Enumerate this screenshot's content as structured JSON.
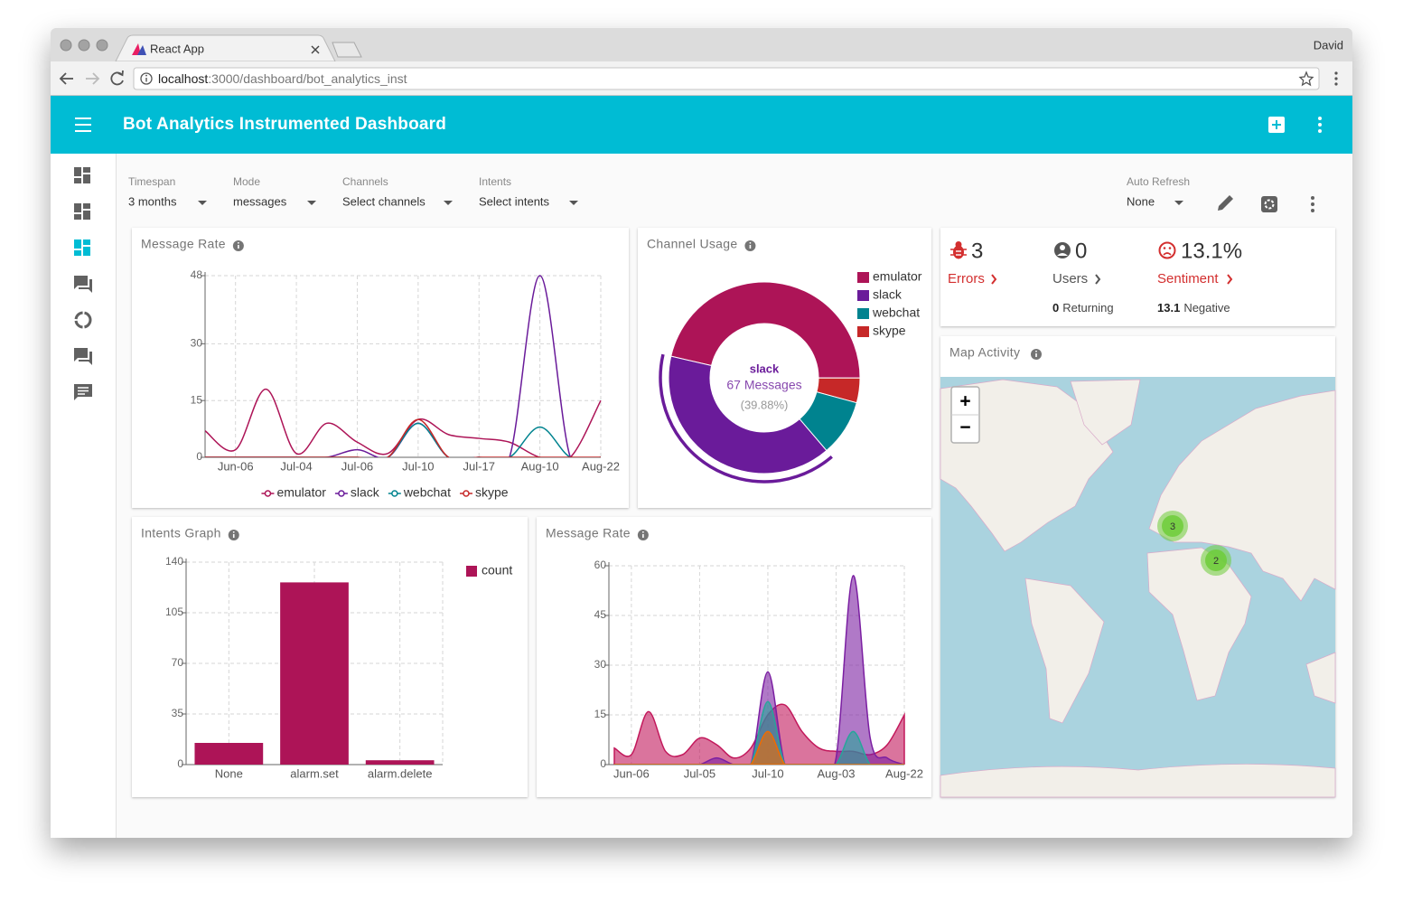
{
  "browser": {
    "tab_title": "React App",
    "user": "David",
    "url": {
      "host": "localhost",
      "path": ":3000/dashboard/bot_analytics_inst"
    }
  },
  "app_bar": {
    "title": "Bot Analytics Instrumented Dashboard"
  },
  "filters": [
    {
      "label": "Timespan",
      "value": "3 months"
    },
    {
      "label": "Mode",
      "value": "messages"
    },
    {
      "label": "Channels",
      "value": "Select channels"
    },
    {
      "label": "Intents",
      "value": "Select intents"
    },
    {
      "label": "Auto Refresh",
      "value": "None"
    }
  ],
  "stats": [
    {
      "value": 3,
      "label": "Errors"
    },
    {
      "value": 0,
      "label": "Users",
      "sub_value": 0,
      "sub_label": "Returning"
    },
    {
      "value_label": "13.1%",
      "label": "Sentiment",
      "sub_value": 13.1,
      "sub_label": "Negative"
    }
  ],
  "map": {
    "title": "Map Activity",
    "zoom_in": "+",
    "zoom_out": "−",
    "clusters": [
      {
        "count": 3
      },
      {
        "count": 2
      }
    ]
  },
  "chart_data": [
    {
      "type": "line",
      "title": "Message Rate",
      "categories": [
        null,
        "Jun-06",
        null,
        "Jul-04",
        null,
        "Jul-06",
        null,
        "Jul-10",
        null,
        "Jul-17",
        null,
        "Aug-10",
        null,
        "Aug-22"
      ],
      "series": [
        {
          "name": "emulator",
          "color": "#ad1457",
          "values": [
            7,
            2,
            18,
            1,
            9,
            4,
            1,
            10,
            6,
            5,
            4,
            0,
            0,
            15
          ]
        },
        {
          "name": "slack",
          "color": "#6a1b9a",
          "values": [
            0,
            0,
            0,
            0,
            0,
            2,
            0,
            9,
            0,
            0,
            0,
            48,
            0,
            0
          ]
        },
        {
          "name": "webchat",
          "color": "#00838f",
          "values": [
            0,
            0,
            0,
            0,
            0,
            0,
            0,
            9,
            0,
            0,
            0,
            8,
            0,
            0
          ]
        },
        {
          "name": "skype",
          "color": "#c62828",
          "values": [
            0,
            0,
            0,
            0,
            0,
            0,
            0,
            10,
            0,
            0,
            0,
            0,
            0,
            0
          ]
        }
      ],
      "ylim": [
        0,
        48
      ],
      "yticks": [
        0,
        15,
        30,
        48
      ],
      "grid": true,
      "legend": "bottom"
    },
    {
      "type": "pie",
      "title": "Channel Usage",
      "categories": [
        "emulator",
        "slack",
        "webchat",
        "skype"
      ],
      "values": [
        78,
        67,
        16,
        7
      ],
      "colors": [
        "#ad1457",
        "#6a1b9a",
        "#00838f",
        "#c62828"
      ],
      "highlight": {
        "name": "slack",
        "value_label": "67 Messages",
        "percent_label": "(39.88%)"
      },
      "legend": "top-right"
    },
    {
      "type": "bar",
      "title": "Intents Graph",
      "categories": [
        "None",
        "alarm.set",
        "alarm.delete"
      ],
      "series": [
        {
          "name": "count",
          "color": "#ad1457",
          "values": [
            15,
            126,
            3
          ]
        }
      ],
      "ylim": [
        0,
        140
      ],
      "yticks": [
        0,
        35,
        70,
        105,
        140
      ],
      "grid": true,
      "legend": "top-right"
    },
    {
      "type": "area",
      "title": "Message Rate",
      "categories": [
        null,
        "Jun-06",
        null,
        null,
        null,
        "Jul-05",
        null,
        null,
        null,
        "Jul-10",
        null,
        null,
        null,
        "Aug-03",
        null,
        null,
        null,
        "Aug-22"
      ],
      "series": [
        {
          "name": "emulator",
          "color": "#c2185b",
          "values": [
            5,
            3,
            16,
            4,
            3,
            8,
            6,
            2,
            5,
            15,
            18,
            10,
            5,
            4,
            4,
            3,
            6,
            15
          ]
        },
        {
          "name": "slack",
          "color": "#7b1fa2",
          "values": [
            0,
            0,
            0,
            0,
            0,
            0,
            2,
            0,
            0,
            28,
            0,
            0,
            0,
            2,
            57,
            8,
            2,
            0
          ]
        },
        {
          "name": "webchat",
          "color": "#26a69a",
          "values": [
            0,
            0,
            0,
            0,
            0,
            0,
            0,
            0,
            0,
            19,
            0,
            0,
            0,
            0,
            10,
            0,
            0,
            0
          ]
        },
        {
          "name": "skype",
          "color": "#ef6c00",
          "values": [
            0,
            0,
            0,
            0,
            0,
            0,
            0,
            0,
            0,
            10,
            0,
            0,
            0,
            0,
            0,
            0,
            0,
            0
          ]
        }
      ],
      "ylim": [
        0,
        60
      ],
      "yticks": [
        0,
        15,
        30,
        45,
        60
      ],
      "grid": true
    }
  ]
}
